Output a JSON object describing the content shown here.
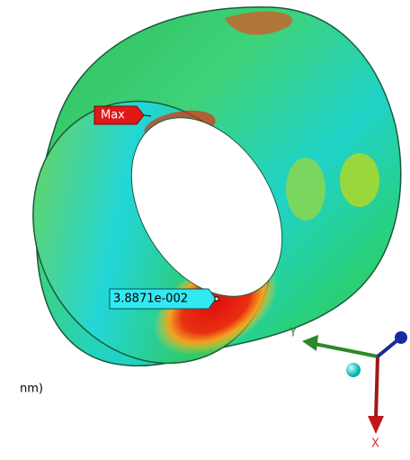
{
  "viewport": {
    "max_label": "Max",
    "probe_label": "3.8871e-002",
    "legend_fragment": "nm)",
    "axes": {
      "y": "Y",
      "x": "X"
    }
  }
}
